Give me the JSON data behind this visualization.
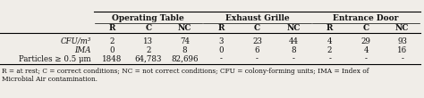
{
  "col_groups": [
    {
      "label": "Operating Table",
      "cols": [
        1,
        2,
        3
      ]
    },
    {
      "label": "Exhaust Grille",
      "cols": [
        4,
        5,
        6
      ]
    },
    {
      "label": "Entrance Door",
      "cols": [
        7,
        8,
        9
      ]
    }
  ],
  "sub_headers": [
    "R",
    "C",
    "NC",
    "R",
    "C",
    "NC",
    "R",
    "C",
    "NC"
  ],
  "row_labels": [
    "CFU/m³",
    "IMA",
    "Particles ≥ 0.5 μm"
  ],
  "row_label_italic": [
    true,
    true,
    false
  ],
  "data": [
    [
      "2",
      "13",
      "74",
      "3",
      "23",
      "44",
      "4",
      "29",
      "93"
    ],
    [
      "0",
      "2",
      "8",
      "0",
      "6",
      "8",
      "2",
      "4",
      "16"
    ],
    [
      "1848",
      "64,783",
      "82,696",
      "-",
      "-",
      "-",
      "-",
      "-",
      "-"
    ]
  ],
  "footnote": "R = at rest; C = correct conditions; NC = not correct conditions; CFU = colony-forming units; IMA = Index of\nMicrobial Air contamination.",
  "bg_color": "#f0ede8",
  "text_color": "#111111",
  "group_fontsize": 6.5,
  "subhead_fontsize": 6.5,
  "data_fontsize": 6.2,
  "label_fontsize": 6.2,
  "footnote_fontsize": 5.3
}
